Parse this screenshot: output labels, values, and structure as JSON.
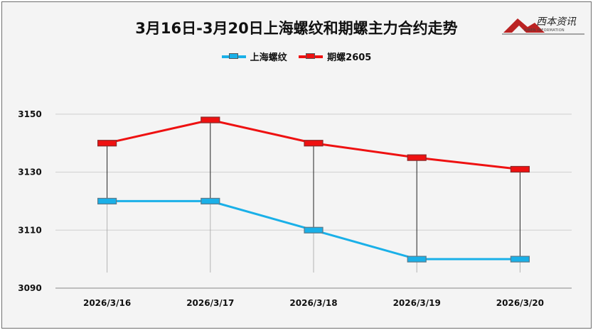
{
  "chart_data": {
    "type": "line",
    "title": "3月16日-3月20日上海螺纹和期螺主力合约走势",
    "categories": [
      "2026/3/16",
      "2026/3/17",
      "2026/3/18",
      "2026/3/19",
      "2026/3/20"
    ],
    "series": [
      {
        "name": "上海螺纹",
        "values": [
          3120,
          3120,
          3110,
          3100,
          3100
        ],
        "color": "#1ab0e8"
      },
      {
        "name": "期螺2605",
        "values": [
          3140,
          3148,
          3140,
          3135,
          3131
        ],
        "color": "#ee1111"
      }
    ],
    "yticks": [
      3090,
      3110,
      3130,
      3150
    ],
    "ylim": [
      3090,
      3160
    ],
    "grid": true,
    "legend_position": "top"
  },
  "logo": {
    "text": "西本资讯",
    "subtext": "XIBEN INFORMATION"
  }
}
